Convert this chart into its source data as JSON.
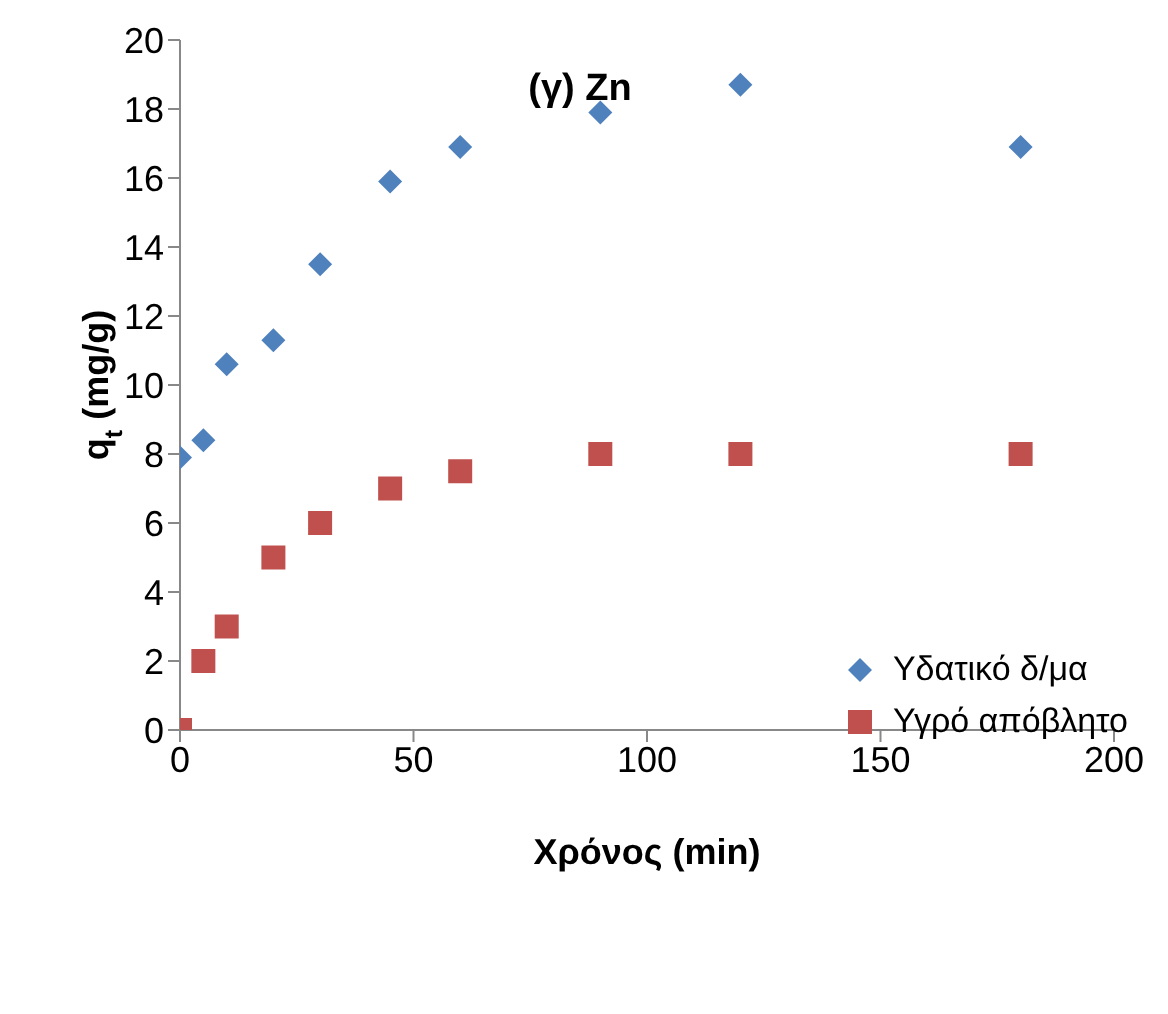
{
  "chart_data": {
    "type": "scatter",
    "title": "(γ) Zn",
    "xlabel": "Χρόνος (min)",
    "ylabel": "q$_{t}$ (mg/g)",
    "xlim": [
      0,
      200
    ],
    "xticks": [
      0,
      50,
      100,
      150,
      200
    ],
    "ylim": [
      0,
      20
    ],
    "yticks": [
      0,
      2,
      4,
      6,
      8,
      10,
      12,
      14,
      16,
      18,
      20
    ],
    "grid": false,
    "legend": "bottom right",
    "series": [
      {
        "name": "Υδατικό δ/μα",
        "color": "#4f81bd",
        "marker": "diamond",
        "x": [
          0,
          5,
          10,
          20,
          30,
          45,
          60,
          90,
          120,
          180
        ],
        "values": [
          7.9,
          8.4,
          10.6,
          11.3,
          13.5,
          15.9,
          16.9,
          17.9,
          18.7,
          16.9
        ]
      },
      {
        "name": "Υγρό απόβλητο",
        "color": "#c0504d",
        "marker": "square",
        "x": [
          0,
          5,
          10,
          20,
          30,
          45,
          60,
          90,
          120,
          180
        ],
        "values": [
          0,
          2,
          3,
          5,
          6,
          7,
          7.5,
          8,
          8,
          8
        ]
      }
    ]
  }
}
